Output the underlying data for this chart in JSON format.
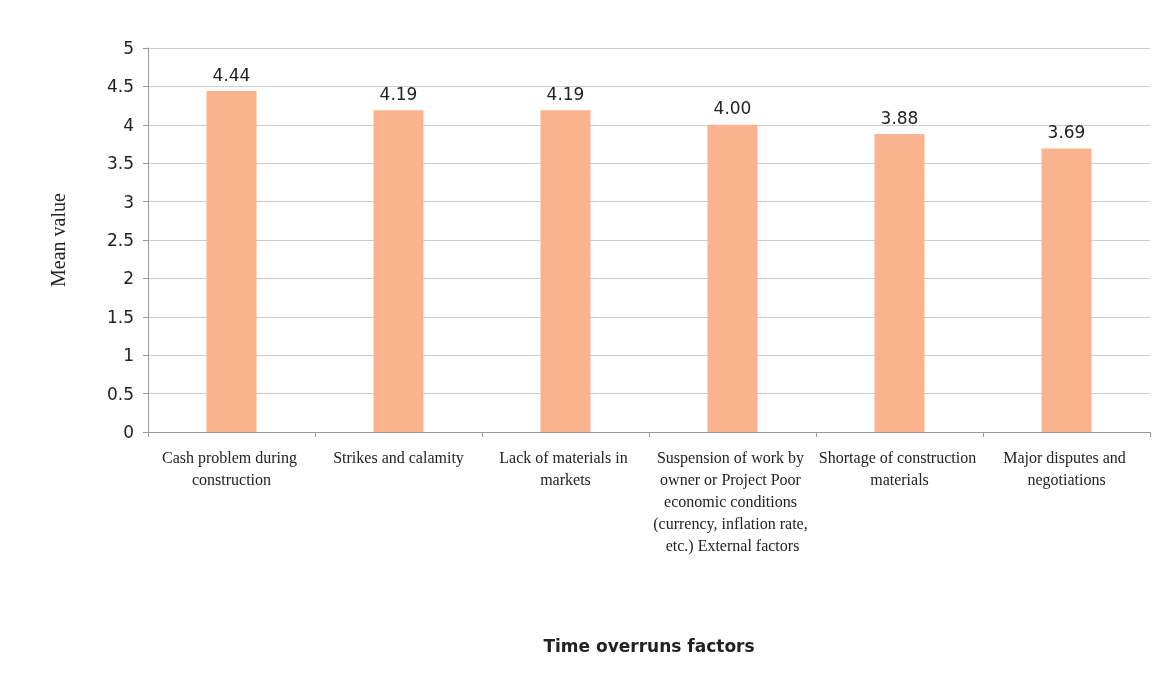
{
  "chart_data": {
    "type": "bar",
    "xlabel": "Time overruns factors",
    "ylabel": "Mean value",
    "categories": [
      "Cash problem during construction",
      "Strikes and calamity",
      "Lack of materials in markets",
      "Suspension of work by owner or Project Poor economic conditions (currency, inflation rate, etc.) External factors",
      "Shortage of construction materials",
      "Major disputes and negotiations"
    ],
    "values": [
      4.44,
      4.19,
      4.19,
      4.0,
      3.88,
      3.69
    ],
    "value_labels": [
      "4.44",
      "4.19",
      "4.19",
      "4.00",
      "3.88",
      "3.69"
    ],
    "color": "#f9b48e",
    "ylim": [
      0,
      5
    ],
    "yticks": [
      0,
      0.5,
      1,
      1.5,
      2,
      2.5,
      3,
      3.5,
      4,
      4.5,
      5
    ],
    "grid": "y"
  }
}
